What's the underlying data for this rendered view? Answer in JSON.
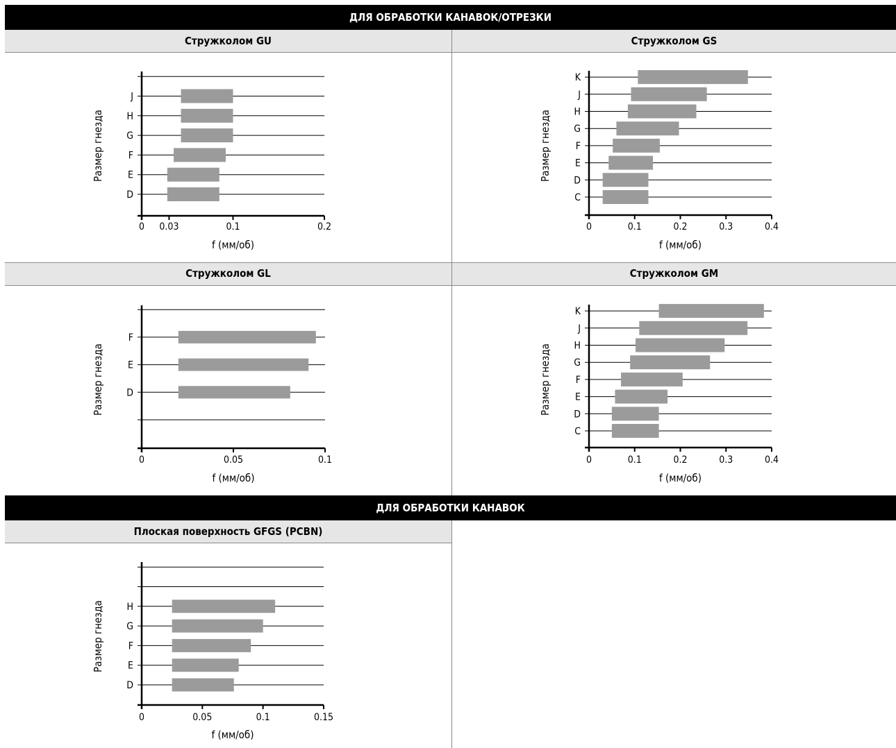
{
  "sections": {
    "top_band": "ДЛЯ ОБРАБОТКИ КАНАВОК/ОТРЕЗКИ",
    "bottom_band": "ДЛЯ ОБРАБОТКИ КАНАВОК"
  },
  "panels": {
    "gu": "Стружколом GU",
    "gs": "Стружколом GS",
    "gl": "Стружколом GL",
    "gm": "Стружколом GM",
    "gfgs": "Плоская поверхность GFGS (PCBN)"
  },
  "chart_data": [
    {
      "id": "gu",
      "type": "bar",
      "title": "Стружколом GU",
      "xlabel": "f (мм/об)",
      "ylabel": "Размер гнезда",
      "xlim": [
        0,
        0.2
      ],
      "xticks": [
        0,
        0.03,
        0.1,
        0.2
      ],
      "xtick_labels": [
        "0",
        "0.03",
        "0.1",
        "0.2"
      ],
      "slots": [
        "D",
        "E",
        "F",
        "G",
        "H",
        "J",
        ""
      ],
      "bars": [
        {
          "slot": "D",
          "from": 0.028,
          "to": 0.085
        },
        {
          "slot": "E",
          "from": 0.028,
          "to": 0.085
        },
        {
          "slot": "F",
          "from": 0.035,
          "to": 0.092
        },
        {
          "slot": "G",
          "from": 0.043,
          "to": 0.1
        },
        {
          "slot": "H",
          "from": 0.043,
          "to": 0.1
        },
        {
          "slot": "J",
          "from": 0.043,
          "to": 0.1
        }
      ]
    },
    {
      "id": "gs",
      "type": "bar",
      "title": "Стружколом GS",
      "xlabel": "f (мм/об)",
      "ylabel": "Размер гнезда",
      "xlim": [
        0,
        0.4
      ],
      "xticks": [
        0,
        0.1,
        0.2,
        0.3,
        0.4
      ],
      "xtick_labels": [
        "0",
        "0.1",
        "0.2",
        "0.3",
        "0.4"
      ],
      "slots": [
        "C",
        "D",
        "E",
        "F",
        "G",
        "H",
        "J",
        "K"
      ],
      "bars": [
        {
          "slot": "C",
          "from": 0.03,
          "to": 0.13
        },
        {
          "slot": "D",
          "from": 0.03,
          "to": 0.13
        },
        {
          "slot": "E",
          "from": 0.043,
          "to": 0.14
        },
        {
          "slot": "F",
          "from": 0.052,
          "to": 0.155
        },
        {
          "slot": "G",
          "from": 0.06,
          "to": 0.197
        },
        {
          "slot": "H",
          "from": 0.085,
          "to": 0.235
        },
        {
          "slot": "J",
          "from": 0.092,
          "to": 0.258
        },
        {
          "slot": "K",
          "from": 0.107,
          "to": 0.348
        }
      ]
    },
    {
      "id": "gl",
      "type": "bar",
      "title": "Стружколом GL",
      "xlabel": "f (мм/об)",
      "ylabel": "Размер гнезда",
      "xlim": [
        0,
        0.1
      ],
      "xticks": [
        0,
        0.05,
        0.1
      ],
      "xtick_labels": [
        "0",
        "0.05",
        "0.1"
      ],
      "slots": [
        "",
        "D",
        "E",
        "F",
        ""
      ],
      "bars": [
        {
          "slot": "D",
          "from": 0.02,
          "to": 0.081
        },
        {
          "slot": "E",
          "from": 0.02,
          "to": 0.091
        },
        {
          "slot": "F",
          "from": 0.02,
          "to": 0.095
        }
      ]
    },
    {
      "id": "gm",
      "type": "bar",
      "title": "Стружколом GM",
      "xlabel": "f (мм/об)",
      "ylabel": "Размер гнезда",
      "xlim": [
        0,
        0.4
      ],
      "xticks": [
        0,
        0.1,
        0.2,
        0.3,
        0.4
      ],
      "xtick_labels": [
        "0",
        "0.1",
        "0.2",
        "0.3",
        "0.4"
      ],
      "slots": [
        "C",
        "D",
        "E",
        "F",
        "G",
        "H",
        "J",
        "K"
      ],
      "bars": [
        {
          "slot": "C",
          "from": 0.05,
          "to": 0.153
        },
        {
          "slot": "D",
          "from": 0.05,
          "to": 0.153
        },
        {
          "slot": "E",
          "from": 0.057,
          "to": 0.172
        },
        {
          "slot": "F",
          "from": 0.07,
          "to": 0.205
        },
        {
          "slot": "G",
          "from": 0.09,
          "to": 0.265
        },
        {
          "slot": "H",
          "from": 0.102,
          "to": 0.297
        },
        {
          "slot": "J",
          "from": 0.11,
          "to": 0.347
        },
        {
          "slot": "K",
          "from": 0.153,
          "to": 0.383
        }
      ]
    },
    {
      "id": "gfgs",
      "type": "bar",
      "title": "Плоская поверхность GFGS (PCBN)",
      "xlabel": "f (мм/об)",
      "ylabel": "Размер гнезда",
      "xlim": [
        0,
        0.15
      ],
      "xticks": [
        0,
        0.05,
        0.1,
        0.15
      ],
      "xtick_labels": [
        "0",
        "0.05",
        "0.1",
        "0.15"
      ],
      "slots": [
        "D",
        "E",
        "F",
        "G",
        "H",
        "",
        ""
      ],
      "bars": [
        {
          "slot": "D",
          "from": 0.025,
          "to": 0.076
        },
        {
          "slot": "E",
          "from": 0.025,
          "to": 0.08
        },
        {
          "slot": "F",
          "from": 0.025,
          "to": 0.09
        },
        {
          "slot": "G",
          "from": 0.025,
          "to": 0.1
        },
        {
          "slot": "H",
          "from": 0.025,
          "to": 0.11
        }
      ]
    }
  ]
}
